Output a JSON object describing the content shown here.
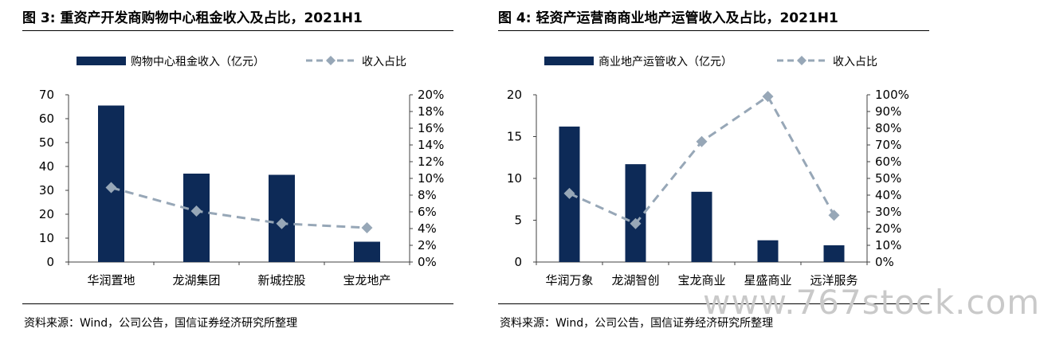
{
  "watermark": "www.767stock.com",
  "colors": {
    "bar": "#0d2a57",
    "line": "#97a7b7",
    "axis": "#404040",
    "text": "#000000"
  },
  "figures": [
    {
      "title": "图 3:  重资产开发商购物中心租金收入及占比，2021H1",
      "source": "资料来源：Wind，公司公告，国信证券经济研究所整理",
      "chart_data": {
        "type": "bar",
        "categories": [
          "华润置地",
          "龙湖集团",
          "新城控股",
          "宝龙地产"
        ],
        "series": [
          {
            "name": "购物中心租金收入（亿元）",
            "type": "bar",
            "axis": "left",
            "values": [
              65.5,
              37.0,
              36.5,
              8.5
            ]
          },
          {
            "name": "收入占比",
            "type": "line",
            "axis": "right",
            "style": "dashed",
            "marker": "diamond",
            "values": [
              0.089,
              0.061,
              0.046,
              0.041
            ]
          }
        ],
        "ylim_left": [
          0,
          70
        ],
        "ylim_right": [
          0,
          0.2
        ],
        "yticks_left": [
          "0",
          "10",
          "20",
          "30",
          "40",
          "50",
          "60",
          "70"
        ],
        "yticks_right": [
          "0%",
          "2%",
          "4%",
          "6%",
          "8%",
          "10%",
          "12%",
          "14%",
          "16%",
          "18%",
          "20%"
        ],
        "legend_position": "top",
        "grid": false
      }
    },
    {
      "title": "图 4:  轻资产运营商商业地产运管收入及占比，2021H1",
      "source": "资料来源：Wind，公司公告，国信证券经济研究所整理",
      "chart_data": {
        "type": "bar",
        "categories": [
          "华润万象",
          "龙湖智创",
          "宝龙商业",
          "星盛商业",
          "远洋服务"
        ],
        "series": [
          {
            "name": "商业地产运管收入（亿元）",
            "type": "bar",
            "axis": "left",
            "values": [
              16.2,
              11.7,
              8.4,
              2.6,
              2.0
            ]
          },
          {
            "name": "收入占比",
            "type": "line",
            "axis": "right",
            "style": "dashed",
            "marker": "diamond",
            "values": [
              0.41,
              0.23,
              0.72,
              0.99,
              0.28
            ]
          }
        ],
        "ylim_left": [
          0,
          20
        ],
        "ylim_right": [
          0,
          1.0
        ],
        "yticks_left": [
          "0",
          "5",
          "10",
          "15",
          "20"
        ],
        "yticks_right": [
          "0%",
          "10%",
          "20%",
          "30%",
          "40%",
          "50%",
          "60%",
          "70%",
          "80%",
          "90%",
          "100%"
        ],
        "legend_position": "top",
        "grid": false
      }
    }
  ]
}
